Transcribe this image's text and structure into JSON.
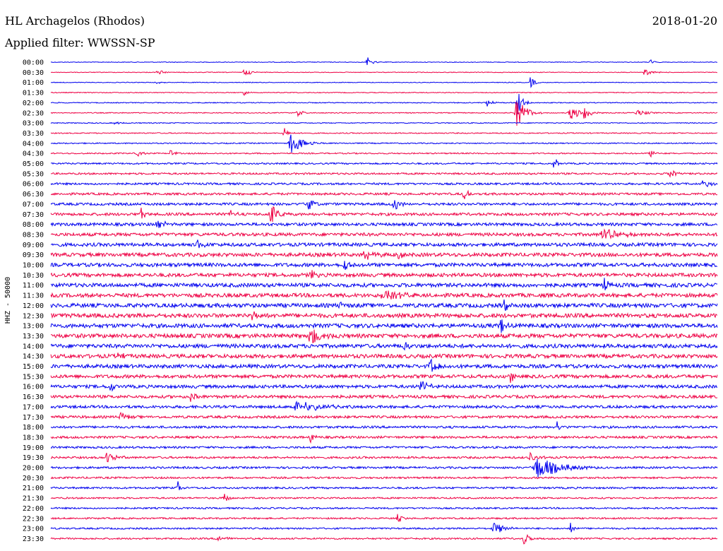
{
  "header": {
    "station": "HL Archagelos (Rhodos)",
    "date": "2018-01-20",
    "filter": "Applied filter: WWSSN-SP"
  },
  "chart_data": {
    "type": "line",
    "title": "HL Archagelos (Rhodos)",
    "subtitle": "Applied filter: WWSSN-SP",
    "ylabel": "HHZ - 50000",
    "xlabel": "",
    "colors": [
      "#0000ee",
      "#ee0044"
    ],
    "row_labels": [
      "00:00",
      "00:30",
      "01:00",
      "01:30",
      "02:00",
      "02:30",
      "03:00",
      "03:30",
      "04:00",
      "04:30",
      "05:00",
      "05:30",
      "06:00",
      "06:30",
      "07:00",
      "07:30",
      "08:00",
      "08:30",
      "09:00",
      "09:30",
      "10:00",
      "10:30",
      "11:00",
      "11:30",
      "12:00",
      "12:30",
      "13:00",
      "13:30",
      "14:00",
      "14:30",
      "15:00",
      "15:30",
      "16:00",
      "16:30",
      "17:00",
      "17:30",
      "18:00",
      "18:30",
      "19:00",
      "19:30",
      "20:00",
      "20:30",
      "21:00",
      "21:30",
      "22:00",
      "22:30",
      "23:00",
      "23:30"
    ],
    "noise_level": [
      0.3,
      0.3,
      0.3,
      0.35,
      0.4,
      0.4,
      0.4,
      0.45,
      0.5,
      0.55,
      0.7,
      0.8,
      0.9,
      1.0,
      1.1,
      1.2,
      1.3,
      1.4,
      1.5,
      1.6,
      1.6,
      1.6,
      1.7,
      1.7,
      1.8,
      1.8,
      1.8,
      1.8,
      1.7,
      1.7,
      1.6,
      1.5,
      1.4,
      1.3,
      1.2,
      1.1,
      1.0,
      1.0,
      0.9,
      0.9,
      0.9,
      0.8,
      0.8,
      0.7,
      0.7,
      0.7,
      0.7,
      0.7
    ],
    "events": [
      {
        "row": 0,
        "t": 0.475,
        "amp": 7,
        "width": 8
      },
      {
        "row": 0,
        "t": 0.9,
        "amp": 4,
        "width": 6
      },
      {
        "row": 1,
        "t": 0.16,
        "amp": 4,
        "width": 10
      },
      {
        "row": 1,
        "t": 0.29,
        "amp": 5,
        "width": 14
      },
      {
        "row": 1,
        "t": 0.89,
        "amp": 5,
        "width": 12
      },
      {
        "row": 2,
        "t": 0.16,
        "amp": 2,
        "width": 8
      },
      {
        "row": 2,
        "t": 0.72,
        "amp": 10,
        "width": 6
      },
      {
        "row": 3,
        "t": 0.29,
        "amp": 4,
        "width": 6
      },
      {
        "row": 4,
        "t": 0.655,
        "amp": 6,
        "width": 8
      },
      {
        "row": 4,
        "t": 0.7,
        "amp": 20,
        "width": 8
      },
      {
        "row": 5,
        "t": 0.7,
        "amp": 26,
        "width": 14
      },
      {
        "row": 5,
        "t": 0.78,
        "amp": 12,
        "width": 14
      },
      {
        "row": 5,
        "t": 0.8,
        "amp": 9,
        "width": 12
      },
      {
        "row": 5,
        "t": 0.37,
        "amp": 7,
        "width": 6
      },
      {
        "row": 5,
        "t": 0.88,
        "amp": 5,
        "width": 14
      },
      {
        "row": 6,
        "t": 0.095,
        "amp": 3,
        "width": 8
      },
      {
        "row": 7,
        "t": 0.35,
        "amp": 8,
        "width": 6
      },
      {
        "row": 8,
        "t": 0.36,
        "amp": 16,
        "width": 18
      },
      {
        "row": 9,
        "t": 0.13,
        "amp": 6,
        "width": 6
      },
      {
        "row": 9,
        "t": 0.18,
        "amp": 6,
        "width": 6
      },
      {
        "row": 9,
        "t": 0.9,
        "amp": 6,
        "width": 8
      },
      {
        "row": 10,
        "t": 0.755,
        "amp": 12,
        "width": 4
      },
      {
        "row": 11,
        "t": 0.93,
        "amp": 6,
        "width": 12
      },
      {
        "row": 12,
        "t": 0.98,
        "amp": 8,
        "width": 12
      },
      {
        "row": 13,
        "t": 0.62,
        "amp": 8,
        "width": 8
      },
      {
        "row": 14,
        "t": 0.385,
        "amp": 14,
        "width": 8
      },
      {
        "row": 14,
        "t": 0.515,
        "amp": 10,
        "width": 10
      },
      {
        "row": 15,
        "t": 0.135,
        "amp": 10,
        "width": 6
      },
      {
        "row": 15,
        "t": 0.33,
        "amp": 14,
        "width": 14
      },
      {
        "row": 15,
        "t": 0.27,
        "amp": 8,
        "width": 6
      },
      {
        "row": 16,
        "t": 0.16,
        "amp": 8,
        "width": 10
      },
      {
        "row": 17,
        "t": 0.83,
        "amp": 8,
        "width": 30
      },
      {
        "row": 18,
        "t": 0.22,
        "amp": 8,
        "width": 8
      },
      {
        "row": 19,
        "t": 0.47,
        "amp": 8,
        "width": 16
      },
      {
        "row": 19,
        "t": 0.52,
        "amp": 8,
        "width": 8
      },
      {
        "row": 20,
        "t": 0.44,
        "amp": 10,
        "width": 8
      },
      {
        "row": 21,
        "t": 0.39,
        "amp": 10,
        "width": 6
      },
      {
        "row": 22,
        "t": 0.83,
        "amp": 10,
        "width": 6
      },
      {
        "row": 23,
        "t": 0.5,
        "amp": 8,
        "width": 30
      },
      {
        "row": 24,
        "t": 0.43,
        "amp": 10,
        "width": 6
      },
      {
        "row": 24,
        "t": 0.68,
        "amp": 12,
        "width": 6
      },
      {
        "row": 25,
        "t": 0.3,
        "amp": 10,
        "width": 8
      },
      {
        "row": 26,
        "t": 0.675,
        "amp": 12,
        "width": 6
      },
      {
        "row": 27,
        "t": 0.39,
        "amp": 14,
        "width": 16
      },
      {
        "row": 28,
        "t": 0.53,
        "amp": 10,
        "width": 6
      },
      {
        "row": 29,
        "t": 0.1,
        "amp": 8,
        "width": 6
      },
      {
        "row": 30,
        "t": 0.57,
        "amp": 10,
        "width": 12
      },
      {
        "row": 31,
        "t": 0.69,
        "amp": 8,
        "width": 8
      },
      {
        "row": 32,
        "t": 0.09,
        "amp": 10,
        "width": 6
      },
      {
        "row": 32,
        "t": 0.555,
        "amp": 10,
        "width": 12
      },
      {
        "row": 33,
        "t": 0.21,
        "amp": 8,
        "width": 6
      },
      {
        "row": 34,
        "t": 0.37,
        "amp": 8,
        "width": 40
      },
      {
        "row": 35,
        "t": 0.105,
        "amp": 6,
        "width": 10
      },
      {
        "row": 36,
        "t": 0.76,
        "amp": 8,
        "width": 6
      },
      {
        "row": 37,
        "t": 0.39,
        "amp": 10,
        "width": 6
      },
      {
        "row": 39,
        "t": 0.085,
        "amp": 10,
        "width": 12
      },
      {
        "row": 39,
        "t": 0.72,
        "amp": 8,
        "width": 10
      },
      {
        "row": 40,
        "t": 0.73,
        "amp": 16,
        "width": 40
      },
      {
        "row": 42,
        "t": 0.19,
        "amp": 12,
        "width": 4
      },
      {
        "row": 43,
        "t": 0.26,
        "amp": 8,
        "width": 6
      },
      {
        "row": 45,
        "t": 0.52,
        "amp": 8,
        "width": 6
      },
      {
        "row": 46,
        "t": 0.665,
        "amp": 10,
        "width": 16
      },
      {
        "row": 46,
        "t": 0.78,
        "amp": 8,
        "width": 6
      },
      {
        "row": 47,
        "t": 0.25,
        "amp": 6,
        "width": 10
      },
      {
        "row": 47,
        "t": 0.71,
        "amp": 12,
        "width": 6
      }
    ]
  }
}
